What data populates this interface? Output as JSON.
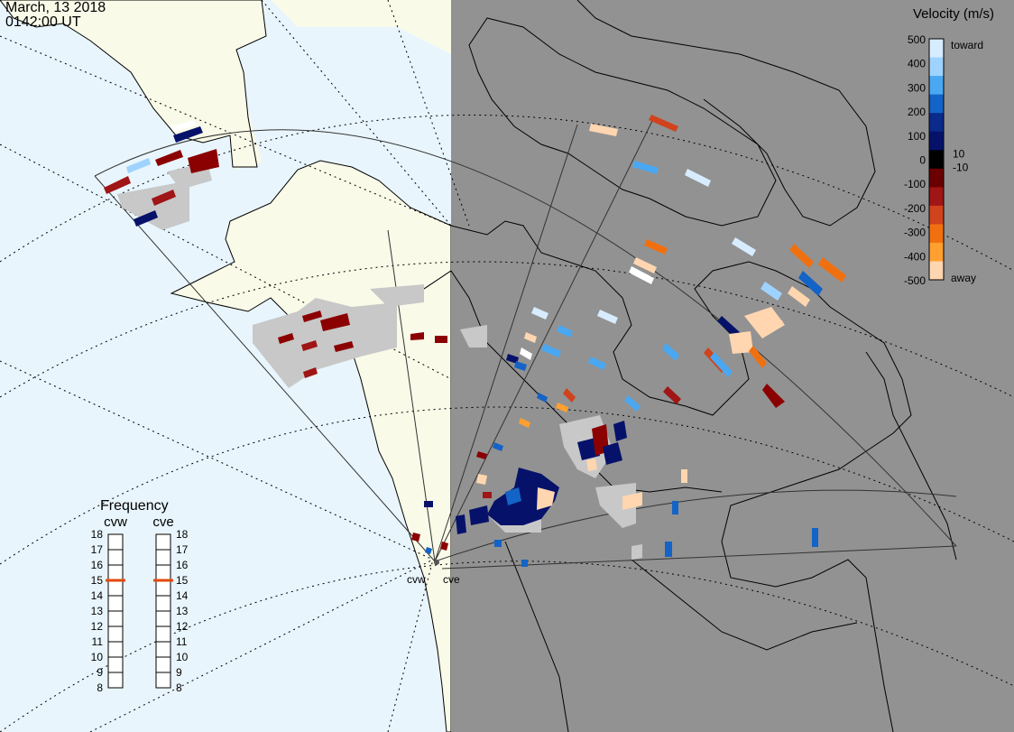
{
  "header": {
    "date": "March, 13 2018",
    "time": "0142:00 UT"
  },
  "colors": {
    "ocean": "#e8f5fd",
    "land": "#fafae9",
    "night_side": "#929292",
    "ground_scatter": "#c8c8c8",
    "freq_marker": "#e34a0e"
  },
  "velocity_scale": {
    "title": "Velocity (m/s)",
    "ticks": [
      "500",
      "400",
      "300",
      "200",
      "100",
      "0",
      "-100",
      "-200",
      "-300",
      "-400",
      "-500"
    ],
    "near_zero_labels": [
      "10",
      "-10"
    ],
    "toward_label": "toward",
    "away_label": "away",
    "colors_top_to_bottom": [
      "#d7ecff",
      "#9fd3ff",
      "#4aa8f2",
      "#1463c6",
      "#0a2a8c",
      "#06126a",
      "#000000",
      "#6a0000",
      "#a01515",
      "#d0431c",
      "#f07010",
      "#ffa030",
      "#ffd6b0"
    ]
  },
  "frequency_panel": {
    "title": "Frequency",
    "radars": [
      {
        "name": "cvw",
        "freq_mhz": 15
      },
      {
        "name": "cve",
        "freq_mhz": 15
      }
    ],
    "ticks": [
      18,
      17,
      16,
      15,
      14,
      13,
      12,
      11,
      10,
      9,
      8
    ]
  },
  "stations": [
    {
      "name": "cvw"
    },
    {
      "name": "cve"
    }
  ]
}
